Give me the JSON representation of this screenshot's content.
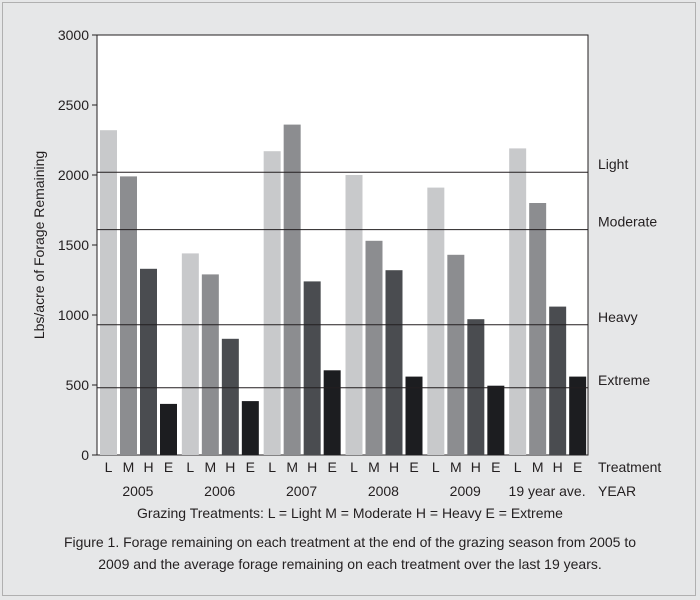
{
  "chart_data": {
    "type": "bar",
    "ylabel": "Lbs/acre of Forage Remaining",
    "ylim": [
      0,
      3000
    ],
    "yticks": [
      0,
      500,
      1000,
      1500,
      2000,
      2500,
      3000
    ],
    "groups": [
      "2005",
      "2006",
      "2007",
      "2008",
      "2009",
      "19 year ave."
    ],
    "treatment_labels": [
      "L",
      "M",
      "H",
      "E"
    ],
    "series": [
      {
        "name": "Light",
        "color": "#c8c9cb",
        "values": [
          2320,
          1440,
          2170,
          2000,
          1910,
          2190
        ]
      },
      {
        "name": "Moderate",
        "color": "#8c8d90",
        "values": [
          1990,
          1290,
          2360,
          1530,
          1430,
          1800
        ]
      },
      {
        "name": "Heavy",
        "color": "#4a4c50",
        "values": [
          1330,
          830,
          1240,
          1320,
          970,
          1060
        ]
      },
      {
        "name": "Extreme",
        "color": "#1c1d20",
        "values": [
          365,
          385,
          605,
          560,
          495,
          560
        ]
      }
    ],
    "reference_lines": [
      {
        "label": "Light",
        "value": 2020
      },
      {
        "label": "Moderate",
        "value": 1610
      },
      {
        "label": "Heavy",
        "value": 930
      },
      {
        "label": "Extreme",
        "value": 480
      }
    ],
    "axis_row_labels": {
      "treatment": "Treatment",
      "year": "YEAR"
    },
    "grid": false,
    "legend": "none"
  },
  "legend_text": "Grazing Treatments:  L = Light  M = Moderate  H = Heavy  E = Extreme",
  "caption_line1": "Figure 1. Forage remaining on each treatment at the end of the grazing season from 2005 to",
  "caption_line2": "2009 and the average forage remaining on each treatment over the last 19 years."
}
